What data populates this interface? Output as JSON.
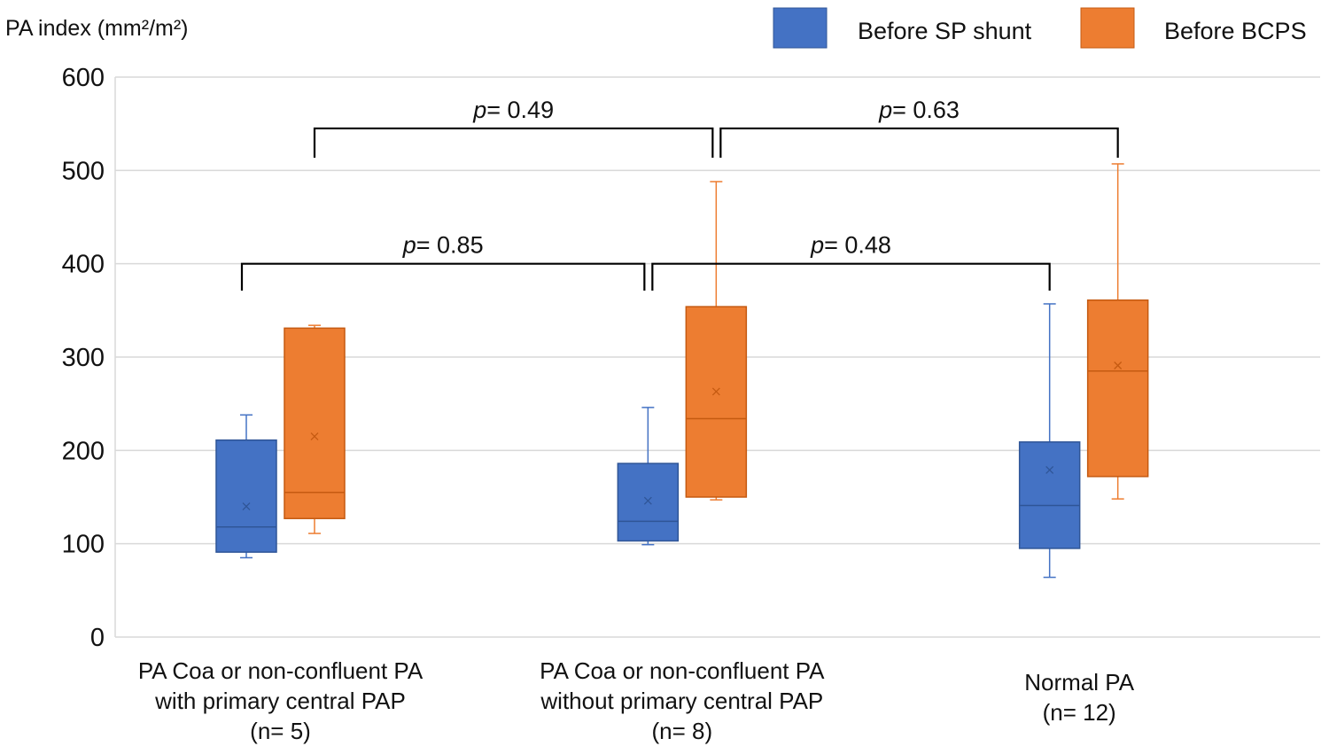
{
  "chart_data": {
    "type": "boxplot",
    "ylabel": "PA index (mm²/m²)",
    "ylim": [
      0,
      600
    ],
    "yticks": [
      0,
      100,
      200,
      300,
      400,
      500,
      600
    ],
    "grid": true,
    "legend_position": "top-right",
    "categories": [
      {
        "lines": [
          "PA Coa or non-confluent PA",
          "with primary central PAP",
          "(n= 5)"
        ]
      },
      {
        "lines": [
          "PA Coa or non-confluent PA",
          "without primary central PAP",
          "(n= 8)"
        ]
      },
      {
        "lines": [
          "Normal PA",
          "(n= 12)"
        ]
      }
    ],
    "series": [
      {
        "name": "Before SP shunt",
        "color": "#4472C4",
        "boxes": [
          {
            "min": 85,
            "q1": 91,
            "median": 118,
            "q3": 211,
            "max": 238,
            "mean": 140
          },
          {
            "min": 99,
            "q1": 103,
            "median": 124,
            "q3": 186,
            "max": 246,
            "mean": 146
          },
          {
            "min": 64,
            "q1": 95,
            "median": 141,
            "q3": 209,
            "max": 357,
            "mean": 179
          }
        ]
      },
      {
        "name": "Before BCPS",
        "color": "#ED7D31",
        "boxes": [
          {
            "min": 111,
            "q1": 127,
            "median": 155,
            "q3": 331,
            "max": 334,
            "mean": 215
          },
          {
            "min": 147,
            "q1": 150,
            "median": 234,
            "q3": 354,
            "max": 488,
            "mean": 263
          },
          {
            "min": 148,
            "q1": 172,
            "median": 285,
            "q3": 361,
            "max": 507,
            "mean": 291
          }
        ]
      }
    ],
    "annotations": [
      {
        "label": "p",
        "text": "= 0.49",
        "series": 1,
        "from": 0,
        "to": 1,
        "level": 545
      },
      {
        "label": "p",
        "text": "= 0.63",
        "series": 1,
        "from": 1,
        "to": 2,
        "level": 545
      },
      {
        "label": "p",
        "text": "= 0.85",
        "series": 0,
        "from": 0,
        "to": 1,
        "level": 400
      },
      {
        "label": "p",
        "text": "= 0.48",
        "series": 0,
        "from": 1,
        "to": 2,
        "level": 400
      }
    ]
  }
}
